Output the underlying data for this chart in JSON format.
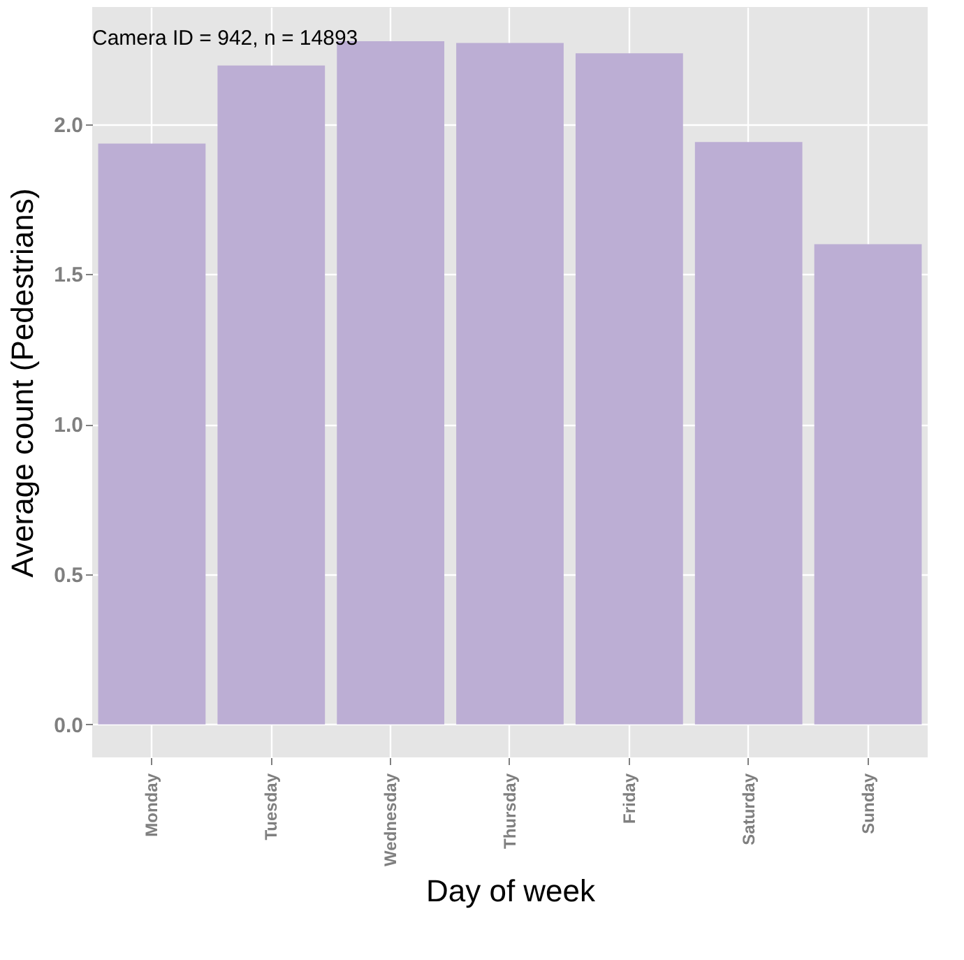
{
  "chart_data": {
    "type": "bar",
    "xlabel": "Day of week",
    "ylabel": "Average count (Pedestrians)",
    "categories": [
      "Monday",
      "Tuesday",
      "Wednesday",
      "Thursday",
      "Friday",
      "Saturday",
      "Sunday"
    ],
    "values": [
      1.935,
      2.195,
      2.276,
      2.27,
      2.236,
      1.94,
      1.6
    ],
    "color": "#bcaed4",
    "ylim": [
      -0.11,
      2.39
    ],
    "yticks": [
      {
        "value": 0,
        "label": "0.0"
      },
      0.5,
      {
        "value": 1,
        "label": "1.0"
      },
      1.5,
      {
        "value": 2,
        "label": "2.0"
      }
    ],
    "grid": true,
    "annotations": [
      "Camera ID = 942, n = 14893"
    ]
  }
}
